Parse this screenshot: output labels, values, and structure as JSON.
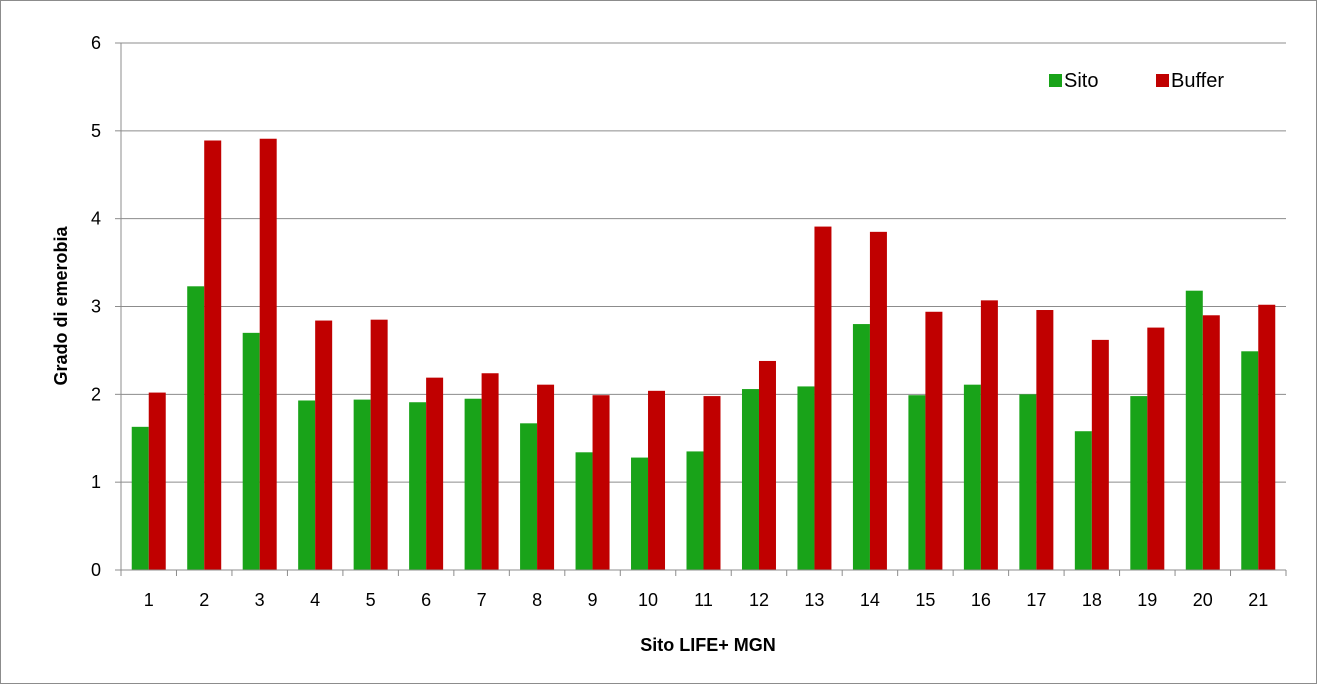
{
  "chart_data": {
    "type": "bar",
    "title": "",
    "xlabel": "Sito LIFE+ MGN",
    "ylabel": "Grado di emerobia",
    "ylim": [
      0,
      6
    ],
    "yticks": [
      "0",
      "1",
      "2",
      "3",
      "4",
      "5",
      "6"
    ],
    "grid": true,
    "legend_position": "top-right",
    "categories": [
      "1",
      "2",
      "3",
      "4",
      "5",
      "6",
      "7",
      "8",
      "9",
      "10",
      "11",
      "12",
      "13",
      "14",
      "15",
      "16",
      "17",
      "18",
      "19",
      "20",
      "21"
    ],
    "series": [
      {
        "name": "Sito",
        "color": "#19a319",
        "values": [
          1.63,
          3.23,
          2.7,
          1.93,
          1.94,
          1.91,
          1.95,
          1.67,
          1.34,
          1.28,
          1.35,
          2.06,
          2.09,
          2.8,
          1.99,
          2.11,
          2.0,
          1.58,
          1.98,
          3.18,
          2.49
        ]
      },
      {
        "name": "Buffer",
        "color": "#c00000",
        "values": [
          2.02,
          4.89,
          4.91,
          2.84,
          2.85,
          2.19,
          2.24,
          2.11,
          1.99,
          2.04,
          1.98,
          2.38,
          3.91,
          3.85,
          2.94,
          3.07,
          2.96,
          2.62,
          2.76,
          2.9,
          3.02
        ]
      }
    ]
  }
}
